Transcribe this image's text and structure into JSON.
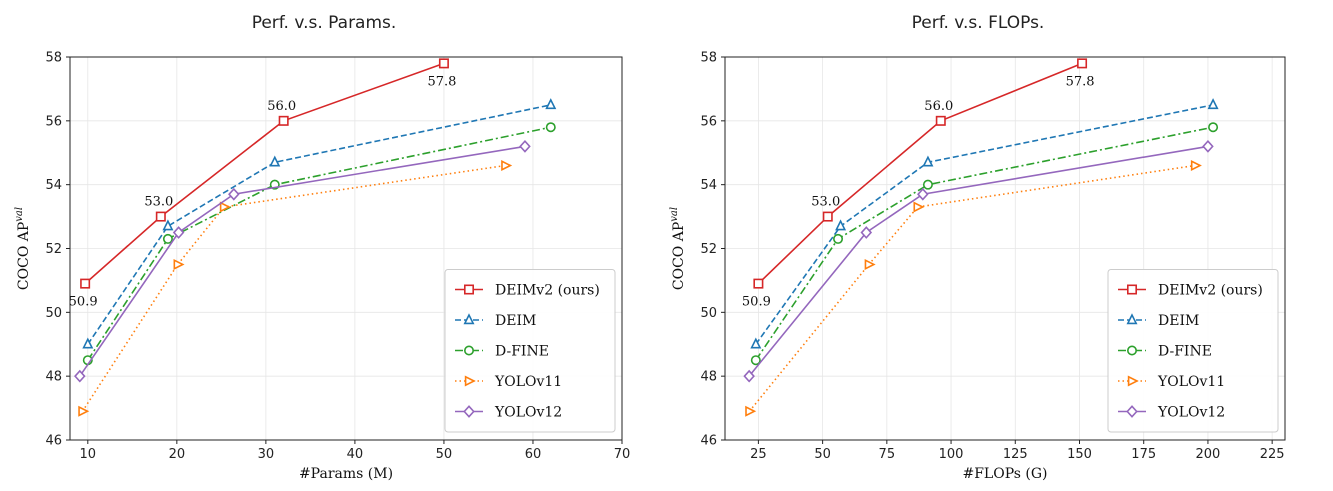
{
  "chart_data": [
    {
      "type": "line",
      "title": "Perf. v.s. Params.",
      "xlabel": "#Params (M)",
      "ylabel": "COCO AP",
      "ylabel_sup": "val",
      "xlim": [
        8,
        70
      ],
      "ylim": [
        46,
        58
      ],
      "xticks": [
        10,
        20,
        30,
        40,
        50,
        60,
        70
      ],
      "yticks": [
        46,
        48,
        50,
        52,
        54,
        56,
        58
      ],
      "grid": true,
      "legend_position": "bottom-right",
      "series": [
        {
          "name": "DEIMv2 (ours)",
          "color": "#d62728",
          "dash": "",
          "marker": "square",
          "x": [
            9.7,
            18.2,
            32.0,
            50.0
          ],
          "y": [
            50.9,
            53.0,
            56.0,
            57.8
          ]
        },
        {
          "name": "DEIM",
          "color": "#1f77b4",
          "dash": "6,3",
          "marker": "triangle-up",
          "x": [
            10.0,
            19.0,
            31.0,
            62.0
          ],
          "y": [
            49.0,
            52.7,
            54.7,
            56.5
          ]
        },
        {
          "name": "D-FINE",
          "color": "#2ca02c",
          "dash": "8,3,2,3",
          "marker": "circle",
          "x": [
            10.0,
            19.0,
            31.0,
            62.0
          ],
          "y": [
            48.5,
            52.3,
            54.0,
            55.8
          ]
        },
        {
          "name": "YOLOv11",
          "color": "#ff7f0e",
          "dash": "1.5,3",
          "marker": "triangle-right",
          "x": [
            9.4,
            20.1,
            25.3,
            56.9
          ],
          "y": [
            46.9,
            51.5,
            53.3,
            54.6
          ]
        },
        {
          "name": "YOLOv12",
          "color": "#9467bd",
          "dash": "",
          "marker": "diamond",
          "x": [
            9.1,
            20.2,
            26.4,
            59.1
          ],
          "y": [
            48.0,
            52.5,
            53.7,
            55.2
          ]
        }
      ],
      "annotations": [
        {
          "text": "50.9",
          "x": 9.7,
          "y": 50.9,
          "pos": "below"
        },
        {
          "text": "53.0",
          "x": 18.2,
          "y": 53.0,
          "pos": "above"
        },
        {
          "text": "56.0",
          "x": 32.0,
          "y": 56.0,
          "pos": "above"
        },
        {
          "text": "57.8",
          "x": 50.0,
          "y": 57.8,
          "pos": "below"
        }
      ]
    },
    {
      "type": "line",
      "title": "Perf. v.s. FLOPs.",
      "xlabel": "#FLOPs (G)",
      "ylabel": "COCO AP",
      "ylabel_sup": "val",
      "xlim": [
        12,
        230
      ],
      "ylim": [
        46,
        58
      ],
      "xticks": [
        25,
        50,
        75,
        100,
        125,
        150,
        175,
        200,
        225
      ],
      "yticks": [
        46,
        48,
        50,
        52,
        54,
        56,
        58
      ],
      "grid": true,
      "legend_position": "bottom-right",
      "series": [
        {
          "name": "DEIMv2 (ours)",
          "color": "#d62728",
          "dash": "",
          "marker": "square",
          "x": [
            25,
            52,
            96,
            151
          ],
          "y": [
            50.9,
            53.0,
            56.0,
            57.8
          ]
        },
        {
          "name": "DEIM",
          "color": "#1f77b4",
          "dash": "6,3",
          "marker": "triangle-up",
          "x": [
            24,
            57,
            91,
            202
          ],
          "y": [
            49.0,
            52.7,
            54.7,
            56.5
          ]
        },
        {
          "name": "D-FINE",
          "color": "#2ca02c",
          "dash": "8,3,2,3",
          "marker": "circle",
          "x": [
            24,
            56,
            91,
            202
          ],
          "y": [
            48.5,
            52.3,
            54.0,
            55.8
          ]
        },
        {
          "name": "YOLOv11",
          "color": "#ff7f0e",
          "dash": "1.5,3",
          "marker": "triangle-right",
          "x": [
            21.5,
            68,
            87,
            195
          ],
          "y": [
            46.9,
            51.5,
            53.3,
            54.6
          ]
        },
        {
          "name": "YOLOv12",
          "color": "#9467bd",
          "dash": "",
          "marker": "diamond",
          "x": [
            21.4,
            67,
            89,
            200
          ],
          "y": [
            48.0,
            52.5,
            53.7,
            55.2
          ]
        }
      ],
      "annotations": [
        {
          "text": "50.9",
          "x": 25,
          "y": 50.9,
          "pos": "below"
        },
        {
          "text": "53.0",
          "x": 52,
          "y": 53.0,
          "pos": "above"
        },
        {
          "text": "56.0",
          "x": 96,
          "y": 56.0,
          "pos": "above"
        },
        {
          "text": "57.8",
          "x": 151,
          "y": 57.8,
          "pos": "below"
        }
      ]
    }
  ]
}
